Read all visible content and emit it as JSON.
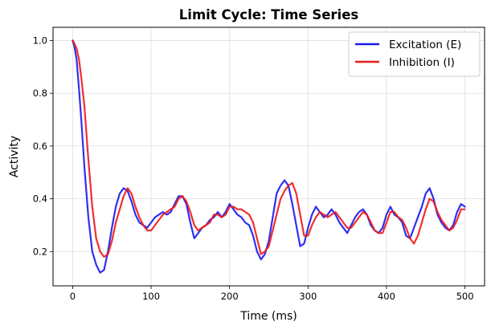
{
  "chart_data": {
    "type": "line",
    "title": "Limit Cycle: Time Series",
    "xlabel": "Time (ms)",
    "ylabel": "Activity",
    "xlim": [
      -25,
      525
    ],
    "ylim": [
      0.07,
      1.05
    ],
    "xticks": [
      0,
      100,
      200,
      300,
      400,
      500
    ],
    "xtick_labels": [
      "0",
      "100",
      "200",
      "300",
      "400",
      "500"
    ],
    "yticks": [
      0.2,
      0.4,
      0.6,
      0.8,
      1.0
    ],
    "ytick_labels": [
      "0.2",
      "0.4",
      "0.6",
      "0.8",
      "1.0"
    ],
    "grid": true,
    "legend_position": "top-right",
    "series": [
      {
        "name": "Excitation (E)",
        "color": "#1a1aee",
        "x": [
          0,
          2,
          5,
          8,
          11,
          15,
          20,
          25,
          30,
          35,
          40,
          45,
          50,
          55,
          60,
          65,
          70,
          75,
          80,
          85,
          90,
          95,
          100,
          105,
          110,
          115,
          120,
          125,
          130,
          135,
          140,
          145,
          150,
          155,
          160,
          165,
          170,
          175,
          180,
          185,
          190,
          195,
          200,
          205,
          210,
          215,
          220,
          225,
          230,
          235,
          240,
          245,
          250,
          255,
          260,
          265,
          270,
          275,
          280,
          285,
          290,
          295,
          300,
          305,
          310,
          315,
          320,
          325,
          330,
          335,
          340,
          345,
          350,
          355,
          360,
          365,
          370,
          375,
          380,
          385,
          390,
          395,
          400,
          405,
          410,
          415,
          420,
          425,
          430,
          435,
          440,
          445,
          450,
          455,
          460,
          465,
          470,
          475,
          480,
          485,
          490,
          495,
          500
        ],
        "y": [
          1.0,
          0.98,
          0.93,
          0.82,
          0.7,
          0.52,
          0.33,
          0.2,
          0.15,
          0.12,
          0.13,
          0.2,
          0.29,
          0.37,
          0.42,
          0.44,
          0.43,
          0.39,
          0.34,
          0.31,
          0.3,
          0.29,
          0.31,
          0.33,
          0.34,
          0.35,
          0.34,
          0.35,
          0.38,
          0.41,
          0.41,
          0.38,
          0.31,
          0.25,
          0.27,
          0.29,
          0.3,
          0.32,
          0.33,
          0.35,
          0.33,
          0.35,
          0.38,
          0.36,
          0.34,
          0.33,
          0.31,
          0.3,
          0.26,
          0.2,
          0.17,
          0.19,
          0.24,
          0.33,
          0.42,
          0.45,
          0.47,
          0.45,
          0.38,
          0.3,
          0.22,
          0.23,
          0.29,
          0.34,
          0.37,
          0.35,
          0.33,
          0.34,
          0.36,
          0.34,
          0.31,
          0.29,
          0.27,
          0.3,
          0.33,
          0.35,
          0.36,
          0.34,
          0.3,
          0.28,
          0.27,
          0.29,
          0.34,
          0.37,
          0.34,
          0.33,
          0.31,
          0.26,
          0.25,
          0.29,
          0.33,
          0.37,
          0.42,
          0.44,
          0.4,
          0.34,
          0.31,
          0.29,
          0.28,
          0.3,
          0.35,
          0.38,
          0.37
        ]
      },
      {
        "name": "Inhibition (I)",
        "color": "#ee1a1a",
        "x": [
          0,
          2,
          5,
          8,
          11,
          15,
          20,
          25,
          30,
          35,
          40,
          45,
          50,
          55,
          60,
          65,
          70,
          75,
          80,
          85,
          90,
          95,
          100,
          105,
          110,
          115,
          120,
          125,
          130,
          135,
          140,
          145,
          150,
          155,
          160,
          165,
          170,
          175,
          180,
          185,
          190,
          195,
          200,
          205,
          210,
          215,
          220,
          225,
          230,
          235,
          240,
          245,
          250,
          255,
          260,
          265,
          270,
          275,
          280,
          285,
          290,
          295,
          300,
          305,
          310,
          315,
          320,
          325,
          330,
          335,
          340,
          345,
          350,
          355,
          360,
          365,
          370,
          375,
          380,
          385,
          390,
          395,
          400,
          405,
          410,
          415,
          420,
          425,
          430,
          435,
          440,
          445,
          450,
          455,
          460,
          465,
          470,
          475,
          480,
          485,
          490,
          495,
          500
        ],
        "y": [
          1.0,
          0.99,
          0.97,
          0.93,
          0.86,
          0.75,
          0.55,
          0.37,
          0.25,
          0.2,
          0.18,
          0.19,
          0.24,
          0.31,
          0.36,
          0.41,
          0.44,
          0.42,
          0.37,
          0.33,
          0.3,
          0.28,
          0.28,
          0.3,
          0.32,
          0.34,
          0.35,
          0.36,
          0.37,
          0.4,
          0.41,
          0.39,
          0.35,
          0.3,
          0.28,
          0.29,
          0.3,
          0.31,
          0.34,
          0.34,
          0.33,
          0.34,
          0.37,
          0.37,
          0.36,
          0.36,
          0.35,
          0.34,
          0.31,
          0.25,
          0.19,
          0.2,
          0.22,
          0.28,
          0.34,
          0.4,
          0.43,
          0.45,
          0.46,
          0.42,
          0.34,
          0.26,
          0.26,
          0.3,
          0.33,
          0.35,
          0.34,
          0.33,
          0.34,
          0.35,
          0.33,
          0.31,
          0.29,
          0.29,
          0.31,
          0.33,
          0.35,
          0.34,
          0.31,
          0.28,
          0.27,
          0.27,
          0.31,
          0.35,
          0.35,
          0.33,
          0.32,
          0.29,
          0.25,
          0.23,
          0.26,
          0.31,
          0.36,
          0.4,
          0.39,
          0.35,
          0.32,
          0.3,
          0.28,
          0.29,
          0.32,
          0.36,
          0.36
        ]
      }
    ]
  }
}
